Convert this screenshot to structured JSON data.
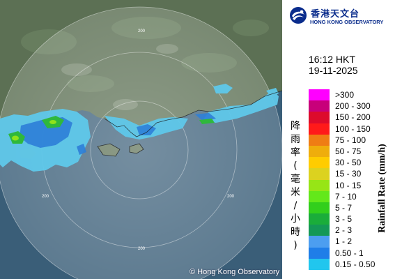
{
  "header": {
    "org_name_zh": "香港天文台",
    "org_name_en": "HONG KONG OBSERVATORY"
  },
  "timestamp": {
    "time": "16:12 HKT",
    "date": "19-11-2025"
  },
  "legend": {
    "title_en": "Rainfall Rate (mm/h)",
    "title_zh": "降雨率(毫米/小時)",
    "items": [
      {
        "label": ">300",
        "color": "#ff00ff"
      },
      {
        "label": "200 - 300",
        "color": "#c8007a"
      },
      {
        "label": "150 - 200",
        "color": "#dd0b2c"
      },
      {
        "label": "100 - 150",
        "color": "#ff1a1a"
      },
      {
        "label": "75 - 100",
        "color": "#ef7d14"
      },
      {
        "label": "50 - 75",
        "color": "#efad0c"
      },
      {
        "label": "30 - 50",
        "color": "#ffcc00"
      },
      {
        "label": "15 - 30",
        "color": "#dcd21f"
      },
      {
        "label": "10 - 15",
        "color": "#97e516"
      },
      {
        "label": "7 - 10",
        "color": "#63e81a"
      },
      {
        "label": "5 - 7",
        "color": "#32cf1c"
      },
      {
        "label": "3 - 5",
        "color": "#1aad3a"
      },
      {
        "label": "2 - 3",
        "color": "#149856"
      },
      {
        "label": "1 - 2",
        "color": "#4c9ef0"
      },
      {
        "label": "0.50 - 1",
        "color": "#1f7ee8"
      },
      {
        "label": "0.15 - 0.50",
        "color": "#21c6ee"
      }
    ]
  },
  "map": {
    "range_ring_labels": [
      "200",
      "200",
      "200",
      "200"
    ],
    "copyright": "© Hong Kong Observatory"
  },
  "colors": {
    "brand_blue": "#0a2c8c",
    "land": "#5c7054",
    "sea": "#3a5e78",
    "radar_coverage": "#9fd8ea"
  }
}
